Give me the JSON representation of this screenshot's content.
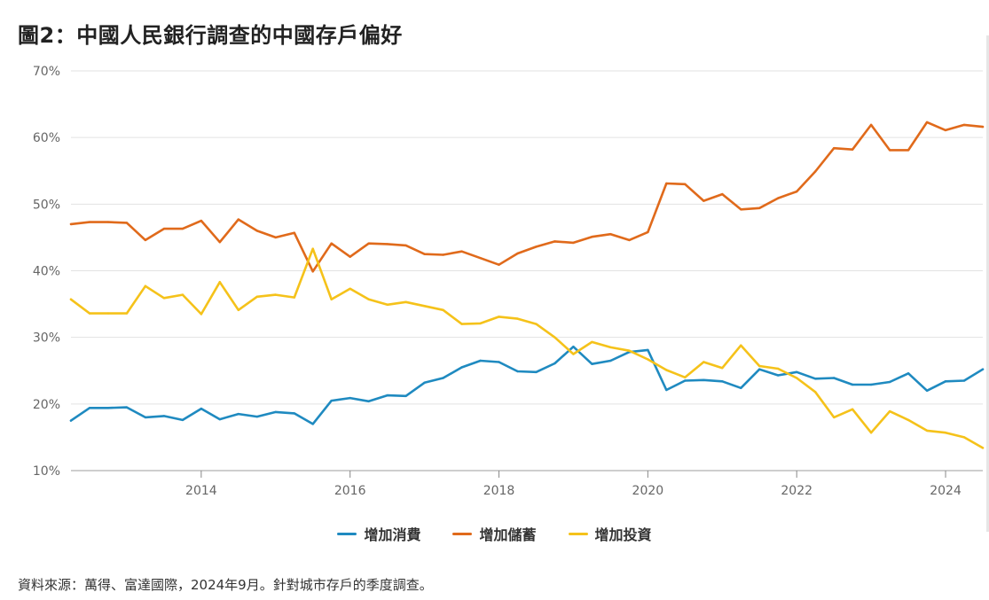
{
  "chart_data": {
    "type": "line",
    "title": "圖2：中國人民銀行調查的中國存戶偏好",
    "xlabel": "",
    "ylabel": "",
    "xlim": [
      2012.25,
      2024.5
    ],
    "ylim": [
      10,
      70
    ],
    "y_ticks": [
      "10%",
      "20%",
      "30%",
      "40%",
      "50%",
      "60%",
      "70%"
    ],
    "y_tick_values": [
      10,
      20,
      30,
      40,
      50,
      60,
      70
    ],
    "x_ticks": [
      "2014",
      "2016",
      "2018",
      "2020",
      "2022",
      "2024"
    ],
    "x_tick_values": [
      2014,
      2016,
      2018,
      2020,
      2022,
      2024
    ],
    "grid": true,
    "legend_position": "bottom-center",
    "x": [
      2012.25,
      2012.5,
      2012.75,
      2013.0,
      2013.25,
      2013.5,
      2013.75,
      2014.0,
      2014.25,
      2014.5,
      2014.75,
      2015.0,
      2015.25,
      2015.5,
      2015.75,
      2016.0,
      2016.25,
      2016.5,
      2016.75,
      2017.0,
      2017.25,
      2017.5,
      2017.75,
      2018.0,
      2018.25,
      2018.5,
      2018.75,
      2019.0,
      2019.25,
      2019.5,
      2019.75,
      2020.0,
      2020.25,
      2020.5,
      2020.75,
      2021.0,
      2021.25,
      2021.5,
      2021.75,
      2022.0,
      2022.25,
      2022.5,
      2022.75,
      2023.0,
      2023.25,
      2023.5,
      2023.75,
      2024.0,
      2024.25,
      2024.5
    ],
    "series": [
      {
        "name": "增加消費",
        "color": "#1f8ac0",
        "values": [
          17.5,
          19.4,
          19.4,
          19.5,
          18.0,
          18.2,
          17.6,
          19.3,
          17.7,
          18.5,
          18.1,
          18.8,
          18.6,
          17.0,
          20.5,
          20.9,
          20.4,
          21.3,
          21.2,
          23.2,
          23.9,
          25.5,
          26.5,
          26.3,
          24.9,
          24.8,
          26.1,
          28.6,
          26.0,
          26.5,
          27.8,
          28.1,
          22.1,
          23.5,
          23.6,
          23.4,
          22.4,
          25.2,
          24.3,
          24.8,
          23.8,
          23.9,
          22.9,
          22.9,
          23.3,
          24.6,
          22.0,
          23.4,
          23.5,
          25.2
        ]
      },
      {
        "name": "增加儲蓄",
        "color": "#e06a1b",
        "values": [
          47.0,
          47.3,
          47.3,
          47.2,
          44.6,
          46.3,
          46.3,
          47.5,
          44.3,
          47.7,
          46.0,
          45.0,
          45.7,
          39.9,
          44.1,
          42.1,
          44.1,
          44.0,
          43.8,
          42.5,
          42.4,
          42.9,
          41.9,
          40.9,
          42.6,
          43.6,
          44.4,
          44.2,
          45.1,
          45.5,
          44.6,
          45.8,
          53.1,
          53.0,
          50.5,
          51.5,
          49.2,
          49.4,
          50.9,
          51.9,
          54.9,
          58.4,
          58.2,
          61.9,
          58.1,
          58.1,
          62.3,
          61.1,
          61.9,
          61.6
        ]
      },
      {
        "name": "增加投資",
        "color": "#f5c21a",
        "values": [
          35.7,
          33.6,
          33.6,
          33.6,
          37.7,
          35.9,
          36.4,
          33.5,
          38.3,
          34.1,
          36.1,
          36.4,
          36.0,
          43.3,
          35.7,
          37.3,
          35.7,
          34.9,
          35.3,
          34.7,
          34.1,
          32.0,
          32.1,
          33.1,
          32.8,
          32.0,
          30.0,
          27.5,
          29.3,
          28.5,
          28.0,
          26.7,
          25.1,
          24.0,
          26.3,
          25.4,
          28.8,
          25.7,
          25.3,
          23.9,
          21.8,
          18.0,
          19.2,
          15.7,
          18.9,
          17.6,
          16.0,
          15.7,
          15.0,
          13.4
        ]
      }
    ]
  },
  "source_text": "資料來源：萬得、富達國際，2024年9月。針對城市存戶的季度調查。"
}
